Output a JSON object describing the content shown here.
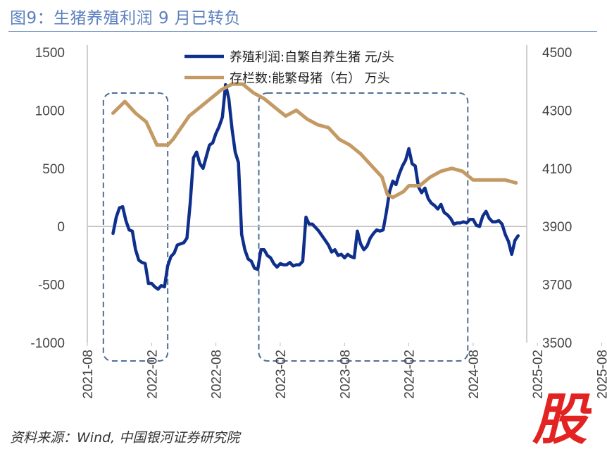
{
  "title": "图9：生猪养殖利润 9 月已转负",
  "source": "资料来源：Wind,  中国银河证券研究院",
  "logo_text": "股",
  "chart_data": {
    "type": "line",
    "title": "生猪养殖利润 9 月已转负",
    "x_start": "2021-08",
    "x_ticks": [
      "2021-08",
      "2022-02",
      "2022-08",
      "2023-02",
      "2023-08",
      "2024-02",
      "2024-08",
      "2025-02",
      "2025-08"
    ],
    "y_left": {
      "ticks": [
        "1500",
        "1000",
        "500",
        "0",
        "-500",
        "-1000"
      ],
      "range": [
        -1000,
        1500
      ]
    },
    "y_right": {
      "ticks": [
        "4500",
        "4300",
        "4100",
        "3900",
        "3700",
        "3500"
      ],
      "range": [
        3500,
        4500
      ]
    },
    "highlight_months": [
      [
        1.5,
        7.5
      ],
      [
        16.0,
        35.5
      ]
    ],
    "series": [
      {
        "name": "养殖利润:自繁自养生猪 元/头",
        "axis": "left",
        "color": "#0f2f8c",
        "points": [
          [
            2.4,
            -60
          ],
          [
            2.7,
            80
          ],
          [
            3.0,
            160
          ],
          [
            3.3,
            170
          ],
          [
            3.6,
            50
          ],
          [
            3.9,
            -30
          ],
          [
            4.2,
            -40
          ],
          [
            4.5,
            -200
          ],
          [
            4.8,
            -290
          ],
          [
            5.1,
            -310
          ],
          [
            5.4,
            -320
          ],
          [
            5.7,
            -490
          ],
          [
            6.0,
            -490
          ],
          [
            6.3,
            -520
          ],
          [
            6.6,
            -540
          ],
          [
            6.9,
            -510
          ],
          [
            7.2,
            -520
          ],
          [
            7.5,
            -340
          ],
          [
            7.8,
            -260
          ],
          [
            8.1,
            -230
          ],
          [
            8.4,
            -160
          ],
          [
            8.7,
            -150
          ],
          [
            9.0,
            -140
          ],
          [
            9.3,
            -100
          ],
          [
            9.6,
            200
          ],
          [
            9.9,
            590
          ],
          [
            10.2,
            640
          ],
          [
            10.5,
            540
          ],
          [
            10.8,
            500
          ],
          [
            11.1,
            600
          ],
          [
            11.4,
            700
          ],
          [
            11.7,
            720
          ],
          [
            12.0,
            800
          ],
          [
            12.3,
            860
          ],
          [
            12.6,
            940
          ],
          [
            12.9,
            1220
          ],
          [
            13.2,
            1100
          ],
          [
            13.5,
            840
          ],
          [
            13.8,
            640
          ],
          [
            14.1,
            550
          ],
          [
            14.4,
            -70
          ],
          [
            14.7,
            -200
          ],
          [
            15.0,
            -280
          ],
          [
            15.3,
            -300
          ],
          [
            15.6,
            -360
          ],
          [
            15.9,
            -370
          ],
          [
            16.2,
            -200
          ],
          [
            16.5,
            -200
          ],
          [
            16.8,
            -250
          ],
          [
            17.1,
            -270
          ],
          [
            17.4,
            -320
          ],
          [
            17.7,
            -350
          ],
          [
            18.0,
            -320
          ],
          [
            18.3,
            -330
          ],
          [
            18.6,
            -330
          ],
          [
            18.9,
            -310
          ],
          [
            19.2,
            -340
          ],
          [
            19.5,
            -330
          ],
          [
            19.8,
            -330
          ],
          [
            20.1,
            -300
          ],
          [
            20.4,
            80
          ],
          [
            20.7,
            20
          ],
          [
            21.0,
            20
          ],
          [
            21.3,
            -10
          ],
          [
            21.6,
            -40
          ],
          [
            21.9,
            -80
          ],
          [
            22.2,
            -120
          ],
          [
            22.5,
            -160
          ],
          [
            22.8,
            -220
          ],
          [
            23.1,
            -200
          ],
          [
            23.4,
            -250
          ],
          [
            23.7,
            -240
          ],
          [
            24.0,
            -270
          ],
          [
            24.3,
            -240
          ],
          [
            24.6,
            -260
          ],
          [
            24.9,
            -270
          ],
          [
            25.2,
            -40
          ],
          [
            25.5,
            -150
          ],
          [
            25.8,
            -200
          ],
          [
            26.1,
            -170
          ],
          [
            26.4,
            -100
          ],
          [
            26.7,
            -60
          ],
          [
            27.0,
            -30
          ],
          [
            27.3,
            -40
          ],
          [
            27.6,
            -30
          ],
          [
            27.9,
            120
          ],
          [
            28.2,
            300
          ],
          [
            28.5,
            390
          ],
          [
            28.8,
            360
          ],
          [
            29.1,
            450
          ],
          [
            29.4,
            520
          ],
          [
            29.7,
            570
          ],
          [
            30.0,
            670
          ],
          [
            30.3,
            540
          ],
          [
            30.6,
            520
          ],
          [
            30.9,
            340
          ],
          [
            31.2,
            290
          ],
          [
            31.5,
            330
          ],
          [
            31.8,
            240
          ],
          [
            32.1,
            200
          ],
          [
            32.4,
            180
          ],
          [
            32.7,
            150
          ],
          [
            33.0,
            190
          ],
          [
            33.3,
            120
          ],
          [
            33.6,
            100
          ],
          [
            33.9,
            70
          ],
          [
            34.2,
            20
          ],
          [
            34.5,
            30
          ],
          [
            34.8,
            30
          ],
          [
            35.1,
            40
          ],
          [
            35.4,
            30
          ],
          [
            35.7,
            60
          ],
          [
            36.0,
            60
          ],
          [
            36.3,
            10
          ],
          [
            36.6,
            0
          ],
          [
            36.9,
            90
          ],
          [
            37.2,
            130
          ],
          [
            37.5,
            70
          ],
          [
            37.8,
            40
          ],
          [
            38.1,
            40
          ],
          [
            38.4,
            50
          ],
          [
            38.7,
            20
          ],
          [
            39.0,
            -70
          ],
          [
            39.3,
            -130
          ],
          [
            39.6,
            -240
          ],
          [
            39.9,
            -120
          ],
          [
            40.2,
            -80
          ]
        ]
      },
      {
        "name": "存栏数:能繁母猪（右） 万头",
        "axis": "right",
        "color": "#c49a64",
        "points": [
          [
            2.4,
            4290
          ],
          [
            3.5,
            4330
          ],
          [
            4.5,
            4290
          ],
          [
            5.5,
            4260
          ],
          [
            6.5,
            4180
          ],
          [
            7.5,
            4180
          ],
          [
            8.0,
            4200
          ],
          [
            9.5,
            4280
          ],
          [
            10.5,
            4310
          ],
          [
            11.5,
            4340
          ],
          [
            12.5,
            4370
          ],
          [
            13.5,
            4390
          ],
          [
            14.5,
            4390
          ],
          [
            15.5,
            4360
          ],
          [
            16.5,
            4340
          ],
          [
            17.5,
            4310
          ],
          [
            18.5,
            4280
          ],
          [
            19.5,
            4300
          ],
          [
            20.5,
            4270
          ],
          [
            21.5,
            4250
          ],
          [
            22.5,
            4240
          ],
          [
            23.5,
            4200
          ],
          [
            24.5,
            4180
          ],
          [
            25.5,
            4150
          ],
          [
            26.5,
            4110
          ],
          [
            27.5,
            4070
          ],
          [
            28.0,
            4010
          ],
          [
            28.5,
            4000
          ],
          [
            29.5,
            4020
          ],
          [
            30.0,
            4040
          ],
          [
            31.0,
            4040
          ],
          [
            32.0,
            4070
          ],
          [
            33.0,
            4090
          ],
          [
            34.0,
            4100
          ],
          [
            35.0,
            4090
          ],
          [
            36.0,
            4060
          ],
          [
            37.0,
            4060
          ],
          [
            38.0,
            4060
          ],
          [
            39.0,
            4060
          ],
          [
            40.0,
            4050
          ]
        ]
      }
    ]
  }
}
